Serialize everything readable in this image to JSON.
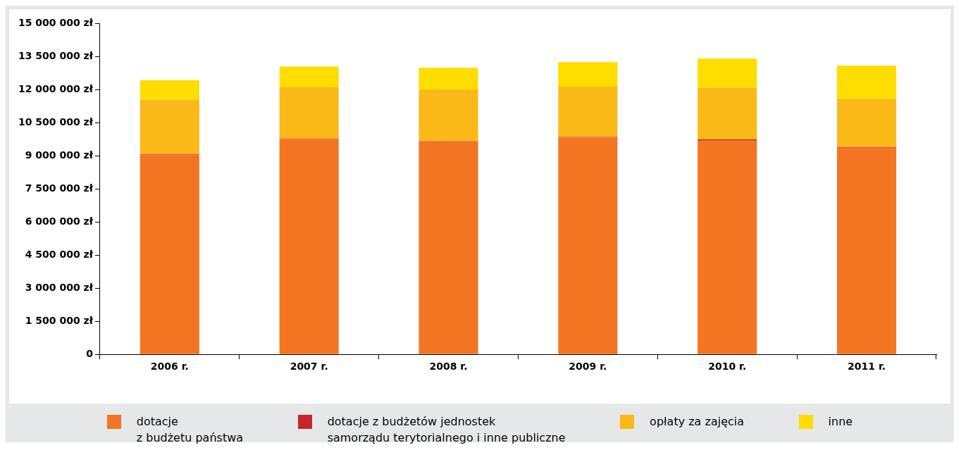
{
  "chart_data": {
    "type": "bar",
    "stacked": true,
    "categories": [
      "2006 r.",
      "2007 r.",
      "2008 r.",
      "2009 r.",
      "2010 r.",
      "2011 r."
    ],
    "series": [
      {
        "name": "dotacje\nz budżetu państwa",
        "color": "#f47521",
        "values": [
          9030000,
          9750000,
          9620000,
          9820000,
          9680000,
          9360000
        ]
      },
      {
        "name": "dotacje z budżetów jednostek\nsamorządu terytorialnego i inne publiczne",
        "color": "#c8242b",
        "values": [
          30000,
          30000,
          30000,
          30000,
          60000,
          30000
        ]
      },
      {
        "name": "opłaty za zajęcia",
        "color": "#fbb918",
        "values": [
          2480000,
          2320000,
          2350000,
          2280000,
          2330000,
          2190000
        ]
      },
      {
        "name": "inne",
        "color": "#ffdd00",
        "values": [
          880000,
          940000,
          980000,
          1110000,
          1330000,
          1500000
        ]
      }
    ],
    "ylim": [
      0,
      15000000
    ],
    "yticks": [
      {
        "value": 0,
        "label": "0"
      },
      {
        "value": 1500000,
        "label": "1 500 000 zł"
      },
      {
        "value": 3000000,
        "label": "3 000 000 zł"
      },
      {
        "value": 4500000,
        "label": "4 500 000 zł"
      },
      {
        "value": 6000000,
        "label": "6 000 000 zł"
      },
      {
        "value": 7500000,
        "label": "7 500 000 zł"
      },
      {
        "value": 9000000,
        "label": "9 000 000 zł"
      },
      {
        "value": 10500000,
        "label": "10 500 000 zł"
      },
      {
        "value": 12000000,
        "label": "12 000 000 zł"
      },
      {
        "value": 13500000,
        "label": "13 500 000 zł"
      },
      {
        "value": 15000000,
        "label": "15 000 000 zł"
      }
    ],
    "grid": false,
    "legend": "bottom"
  }
}
